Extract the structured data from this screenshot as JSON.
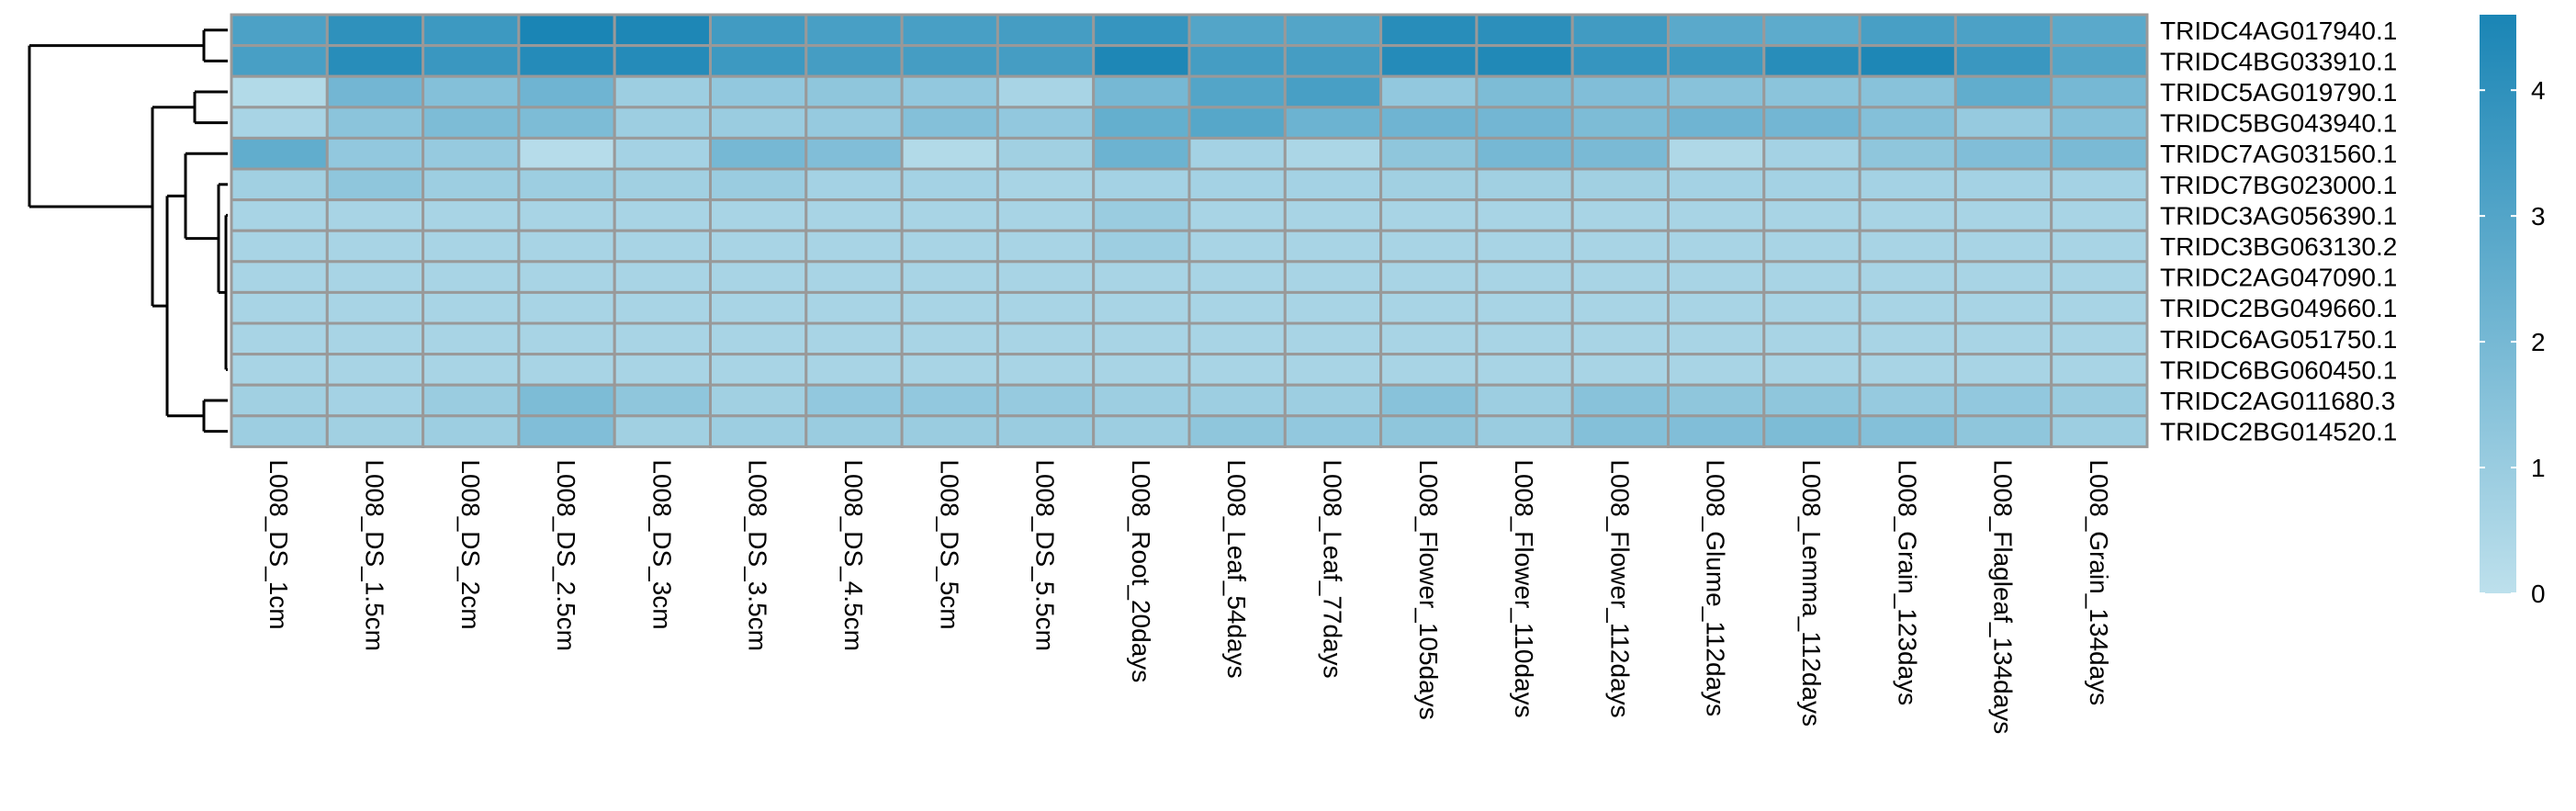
{
  "chart_data": {
    "type": "heatmap",
    "title": "",
    "columns": [
      "L008_DS_1cm",
      "L008_DS_1.5cm",
      "L008_DS_2cm",
      "L008_DS_2.5cm",
      "L008_DS_3cm",
      "L008_DS_3.5cm",
      "L008_DS_4.5cm",
      "L008_DS_5cm",
      "L008_DS_5.5cm",
      "L008_Root_20days",
      "L008_Leaf_54days",
      "L008_Leaf_77days",
      "L008_Flower_105days",
      "L008_Flower_110days",
      "L008_Flower_112days",
      "L008_Glume_112days",
      "L008_Lemma_112days",
      "L008_Grain_123days",
      "L008_Flagleaf_134days",
      "L008_Grain_134days"
    ],
    "rows": [
      "TRIDC4AG017940.1",
      "TRIDC4BG033910.1",
      "TRIDC5AG019790.1",
      "TRIDC5BG043940.1",
      "TRIDC7AG031560.1",
      "TRIDC7BG023000.1",
      "TRIDC3AG056390.1",
      "TRIDC3BG063130.2",
      "TRIDC2AG047090.1",
      "TRIDC2BG049660.1",
      "TRIDC6AG051750.1",
      "TRIDC6BG060450.1",
      "TRIDC2AG011680.3",
      "TRIDC2BG014520.1"
    ],
    "values": [
      [
        3.2,
        4.0,
        3.6,
        4.6,
        4.5,
        3.5,
        3.3,
        3.3,
        3.4,
        3.8,
        3.0,
        3.0,
        4.2,
        4.1,
        3.5,
        2.8,
        2.7,
        3.3,
        3.2,
        2.8
      ],
      [
        3.3,
        4.2,
        3.7,
        4.3,
        4.3,
        3.6,
        3.4,
        3.4,
        3.4,
        4.5,
        3.4,
        3.4,
        4.3,
        4.4,
        3.8,
        3.6,
        4.2,
        4.5,
        3.7,
        3.0
      ],
      [
        0.3,
        2.1,
        1.6,
        2.2,
        0.9,
        1.2,
        1.3,
        1.2,
        0.6,
        2.0,
        3.0,
        3.3,
        1.2,
        1.8,
        1.7,
        1.5,
        1.4,
        1.5,
        2.6,
        2.0
      ],
      [
        0.6,
        1.4,
        1.8,
        1.8,
        0.9,
        1.0,
        1.1,
        1.6,
        1.2,
        2.5,
        2.9,
        2.3,
        2.2,
        2.1,
        1.8,
        2.2,
        2.1,
        1.6,
        1.1,
        1.6
      ],
      [
        2.6,
        1.2,
        1.1,
        0.2,
        0.7,
        2.0,
        1.7,
        0.3,
        0.8,
        2.3,
        0.7,
        0.5,
        1.3,
        2.0,
        1.9,
        0.4,
        0.7,
        1.3,
        1.7,
        1.9
      ],
      [
        0.8,
        1.3,
        0.9,
        0.9,
        0.8,
        1.0,
        0.7,
        0.7,
        0.6,
        0.7,
        0.7,
        0.7,
        0.8,
        0.8,
        0.8,
        0.7,
        0.7,
        0.7,
        0.7,
        0.7
      ],
      [
        0.6,
        0.6,
        0.6,
        0.6,
        0.6,
        0.6,
        0.6,
        0.6,
        0.6,
        1.0,
        0.6,
        0.6,
        0.6,
        0.6,
        0.6,
        0.6,
        0.6,
        0.6,
        0.6,
        0.6
      ],
      [
        0.6,
        0.6,
        0.6,
        0.6,
        0.6,
        0.6,
        0.6,
        0.6,
        0.6,
        0.9,
        0.6,
        0.6,
        0.6,
        0.6,
        0.6,
        0.6,
        0.6,
        0.6,
        0.6,
        0.6
      ],
      [
        0.6,
        0.6,
        0.6,
        0.6,
        0.6,
        0.6,
        0.6,
        0.6,
        0.6,
        0.6,
        0.6,
        0.6,
        0.6,
        0.6,
        0.6,
        0.6,
        0.6,
        0.6,
        0.6,
        0.6
      ],
      [
        0.6,
        0.6,
        0.6,
        0.6,
        0.6,
        0.6,
        0.6,
        0.6,
        0.6,
        0.6,
        0.6,
        0.6,
        0.6,
        0.6,
        0.6,
        0.6,
        0.6,
        0.6,
        0.6,
        0.6
      ],
      [
        0.6,
        0.6,
        0.6,
        0.6,
        0.6,
        0.6,
        0.6,
        0.6,
        0.6,
        0.6,
        0.6,
        0.6,
        0.6,
        0.6,
        0.6,
        0.6,
        0.6,
        0.6,
        0.6,
        0.6
      ],
      [
        0.6,
        0.6,
        0.6,
        0.6,
        0.6,
        0.6,
        0.6,
        0.6,
        0.6,
        0.6,
        0.6,
        0.6,
        0.6,
        0.6,
        0.6,
        0.6,
        0.6,
        0.6,
        0.6,
        0.6
      ],
      [
        0.8,
        0.7,
        1.0,
        1.8,
        1.3,
        0.8,
        1.2,
        1.2,
        1.1,
        0.9,
        0.9,
        0.9,
        1.5,
        0.9,
        1.5,
        1.3,
        1.3,
        1.1,
        1.2,
        1.0
      ],
      [
        0.9,
        0.8,
        0.9,
        1.7,
        0.8,
        0.9,
        1.0,
        1.0,
        1.0,
        0.9,
        1.3,
        1.2,
        1.3,
        1.0,
        1.6,
        1.7,
        1.8,
        1.6,
        1.3,
        0.9
      ]
    ],
    "color_scale": {
      "min": 0,
      "max": 4.6,
      "low_color": "#bde0ec",
      "high_color": "#1a85b5"
    },
    "legend": {
      "ticks": [
        0,
        1,
        2,
        3,
        4
      ],
      "placement": "right"
    },
    "cell_border_color": "#999999",
    "dendrogram": "left",
    "grid": true
  }
}
